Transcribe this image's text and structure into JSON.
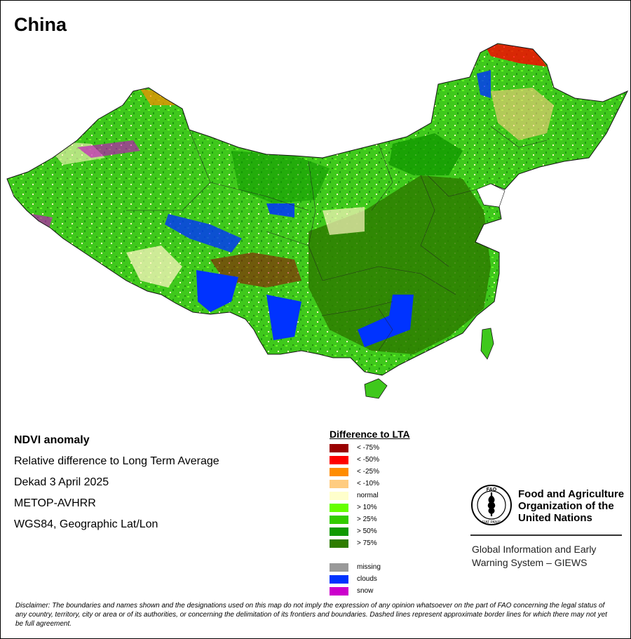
{
  "map": {
    "title": "China"
  },
  "info": {
    "product": "NDVI anomaly",
    "description": "Relative difference to Long Term Average",
    "period": "Dekad 3 April 2025",
    "sensor": "METOP-AVHRR",
    "projection": "WGS84, Geographic Lat/Lon"
  },
  "legend": {
    "title": "Difference to LTA",
    "classes": [
      {
        "label": "< -75%",
        "color": "#990000"
      },
      {
        "label": "< -50%",
        "color": "#ff0000"
      },
      {
        "label": "< -25%",
        "color": "#ff8c00"
      },
      {
        "label": "< -10%",
        "color": "#ffcc80"
      },
      {
        "label": "normal",
        "color": "#ffffcc"
      },
      {
        "label": "> 10%",
        "color": "#66ff00"
      },
      {
        "label": "> 25%",
        "color": "#33cc00"
      },
      {
        "label": "> 50%",
        "color": "#119900"
      },
      {
        "label": "> 75%",
        "color": "#2e7d00"
      }
    ],
    "special": [
      {
        "label": "missing",
        "color": "#999999"
      },
      {
        "label": "clouds",
        "color": "#0033ff"
      },
      {
        "label": "snow",
        "color": "#cc00cc"
      }
    ]
  },
  "organization": {
    "name_line1": "Food and Agriculture",
    "name_line2": "Organization of the",
    "name_line3": "United Nations",
    "logo_text": "FAO",
    "logo_motto": "FIAT PANIS",
    "system_line1": "Global Information and Early",
    "system_line2": "Warning System – GIEWS"
  },
  "disclaimer": "Disclaimer: The boundaries and names shown and the designations used on this map do not imply the expression of any opinion whatsoever on the part of FAO concerning the legal status of any country, territory, city or area or of its authorities, or concerning the delimitation of its frontiers and boundaries. Dashed lines represent approximate border lines for which there may not yet be full agreement."
}
